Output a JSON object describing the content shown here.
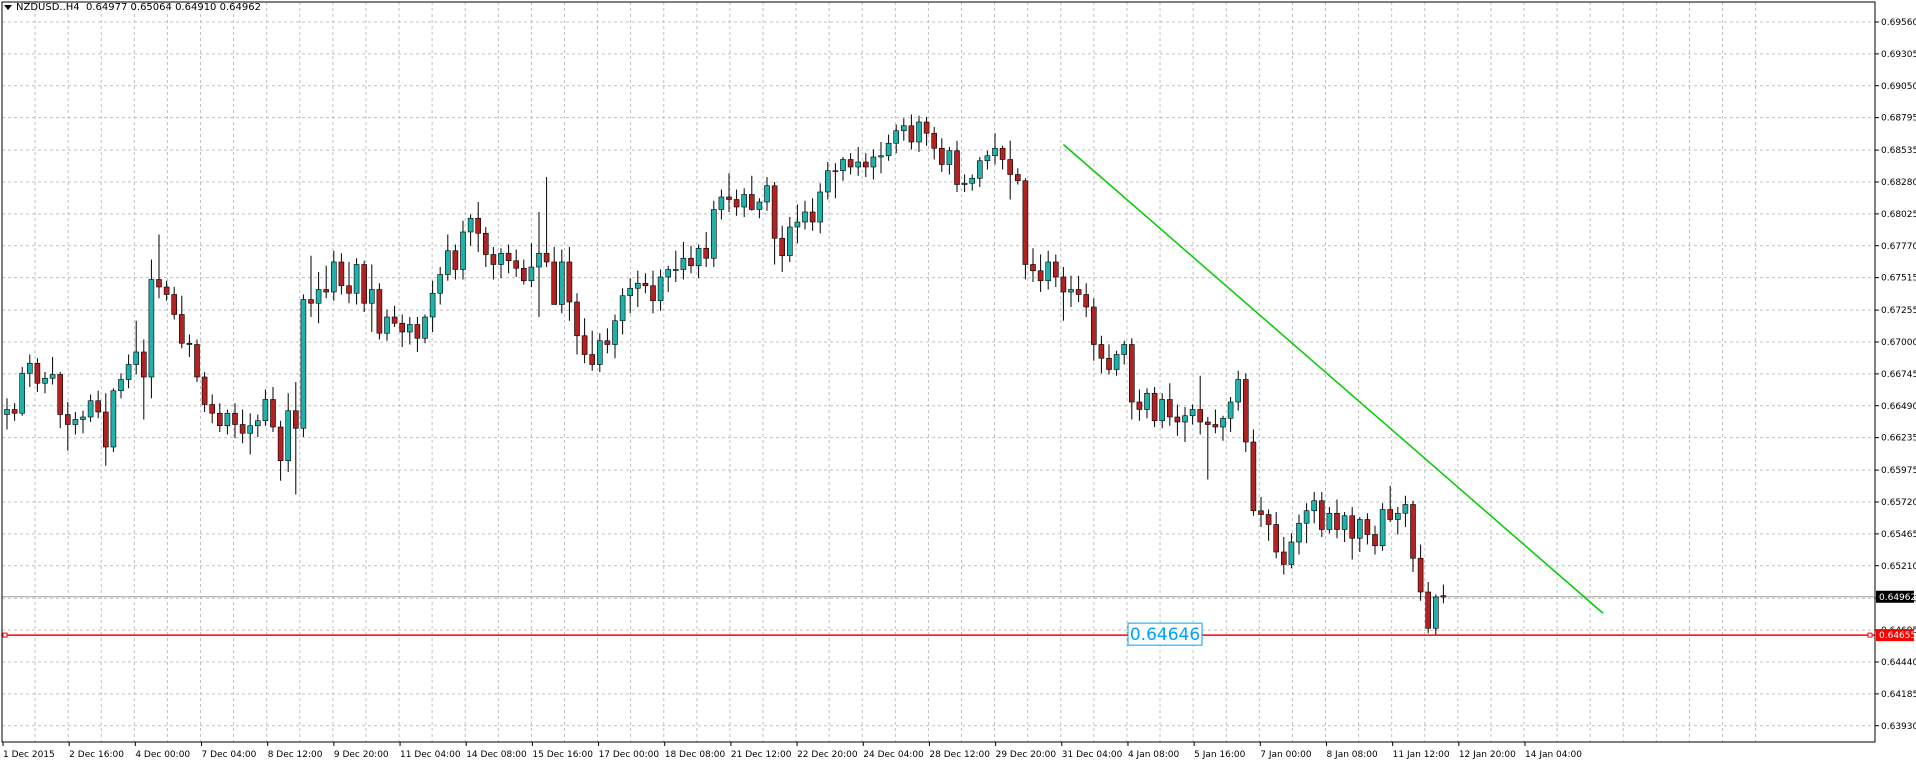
{
  "header": {
    "symbol": "NZDUSD..H4",
    "ohlc_text": "0.64977 0.65064 0.64910 0.64962"
  },
  "colors": {
    "background": "#ffffff",
    "grid": "#c0c0c0",
    "axis": "#000000",
    "bull_candle": "#20b2aa",
    "bear_candle": "#b22222",
    "wick": "#000000",
    "trendline": "#00cc00",
    "support_line": "#ff0000",
    "price_label_bg": "#000000",
    "support_label_bg": "#ff0000",
    "annotation": "#00a0ff"
  },
  "chart_data": {
    "type": "candlestick",
    "symbol": "NZDUSD",
    "timeframe": "H4",
    "grid": true,
    "ylim": [
      0.638,
      0.6972
    ],
    "y_ticks": [
      "0.69560",
      "0.69305",
      "0.69050",
      "0.68795",
      "0.68535",
      "0.68280",
      "0.68025",
      "0.67770",
      "0.67515",
      "0.67255",
      "0.67000",
      "0.66745",
      "0.66490",
      "0.66235",
      "0.65975",
      "0.65720",
      "0.65465",
      "0.65210",
      "0.64950",
      "0.64695",
      "0.64440",
      "0.64185",
      "0.63930"
    ],
    "x_ticks": [
      "1 Dec 2015",
      "2 Dec 16:00",
      "4 Dec 00:00",
      "7 Dec 04:00",
      "8 Dec 12:00",
      "9 Dec 20:00",
      "11 Dec 04:00",
      "14 Dec 08:00",
      "15 Dec 16:00",
      "17 Dec 00:00",
      "18 Dec 08:00",
      "21 Dec 12:00",
      "22 Dec 20:00",
      "24 Dec 04:00",
      "28 Dec 12:00",
      "29 Dec 20:00",
      "31 Dec 04:00",
      "4 Jan 08:00",
      "5 Jan 16:00",
      "7 Jan 00:00",
      "8 Jan 08:00",
      "11 Jan 12:00",
      "12 Jan 20:00",
      "14 Jan 04:00"
    ],
    "current_price": "0.64962",
    "support_level": "0.64655",
    "annotation_text": "0.64646",
    "trendline": {
      "start_index": 139,
      "start_price": 0.6858,
      "end_index": 210,
      "end_price": 0.6483
    },
    "candles": [
      [
        0.6642,
        0.6655,
        0.663,
        0.6646
      ],
      [
        0.6646,
        0.6651,
        0.6637,
        0.6643
      ],
      [
        0.6643,
        0.668,
        0.6641,
        0.6675
      ],
      [
        0.6675,
        0.669,
        0.6664,
        0.6683
      ],
      [
        0.6683,
        0.6687,
        0.666,
        0.6667
      ],
      [
        0.6667,
        0.6676,
        0.6659,
        0.6671
      ],
      [
        0.6671,
        0.6688,
        0.6666,
        0.6674
      ],
      [
        0.6674,
        0.6676,
        0.6631,
        0.6642
      ],
      [
        0.6642,
        0.6652,
        0.6613,
        0.6634
      ],
      [
        0.6634,
        0.6644,
        0.6626,
        0.6638
      ],
      [
        0.6638,
        0.6645,
        0.6627,
        0.664
      ],
      [
        0.664,
        0.6658,
        0.6636,
        0.6653
      ],
      [
        0.6653,
        0.6661,
        0.6639,
        0.6644
      ],
      [
        0.6644,
        0.6659,
        0.6601,
        0.6616
      ],
      [
        0.6616,
        0.6663,
        0.6612,
        0.6661
      ],
      [
        0.6661,
        0.6675,
        0.6655,
        0.667
      ],
      [
        0.667,
        0.669,
        0.6663,
        0.6682
      ],
      [
        0.6682,
        0.6717,
        0.6674,
        0.6692
      ],
      [
        0.6692,
        0.6702,
        0.6638,
        0.6672
      ],
      [
        0.6672,
        0.6766,
        0.6655,
        0.675
      ],
      [
        0.675,
        0.6786,
        0.6735,
        0.6744
      ],
      [
        0.6744,
        0.6749,
        0.6733,
        0.6738
      ],
      [
        0.6738,
        0.6744,
        0.6718,
        0.6722
      ],
      [
        0.6722,
        0.6737,
        0.6695,
        0.6699
      ],
      [
        0.6699,
        0.6706,
        0.6688,
        0.6698
      ],
      [
        0.6698,
        0.6702,
        0.6668,
        0.6672
      ],
      [
        0.6672,
        0.6676,
        0.6644,
        0.665
      ],
      [
        0.665,
        0.6658,
        0.6635,
        0.6643
      ],
      [
        0.6643,
        0.6651,
        0.6628,
        0.6633
      ],
      [
        0.6633,
        0.6646,
        0.6626,
        0.6643
      ],
      [
        0.6643,
        0.6651,
        0.6623,
        0.6634
      ],
      [
        0.6634,
        0.6646,
        0.6619,
        0.6627
      ],
      [
        0.6627,
        0.6643,
        0.661,
        0.6633
      ],
      [
        0.6633,
        0.6642,
        0.6624,
        0.6637
      ],
      [
        0.6637,
        0.6662,
        0.6633,
        0.6654
      ],
      [
        0.6654,
        0.6664,
        0.6628,
        0.6632
      ],
      [
        0.6632,
        0.6637,
        0.6589,
        0.6605
      ],
      [
        0.6605,
        0.6659,
        0.6596,
        0.6645
      ],
      [
        0.6645,
        0.6668,
        0.6578,
        0.6631
      ],
      [
        0.6631,
        0.6738,
        0.6624,
        0.6734
      ],
      [
        0.6734,
        0.6769,
        0.672,
        0.6731
      ],
      [
        0.6731,
        0.6756,
        0.6715,
        0.6742
      ],
      [
        0.6742,
        0.6761,
        0.6735,
        0.674
      ],
      [
        0.674,
        0.6773,
        0.6733,
        0.6764
      ],
      [
        0.6764,
        0.6771,
        0.6738,
        0.6745
      ],
      [
        0.6745,
        0.6764,
        0.6731,
        0.6739
      ],
      [
        0.6739,
        0.6767,
        0.673,
        0.6762
      ],
      [
        0.6762,
        0.6765,
        0.6724,
        0.6731
      ],
      [
        0.6731,
        0.6762,
        0.6708,
        0.6742
      ],
      [
        0.6742,
        0.6747,
        0.6702,
        0.6707
      ],
      [
        0.6707,
        0.6726,
        0.6701,
        0.672
      ],
      [
        0.672,
        0.6729,
        0.6712,
        0.6715
      ],
      [
        0.6715,
        0.6722,
        0.6696,
        0.6708
      ],
      [
        0.6708,
        0.672,
        0.6698,
        0.6714
      ],
      [
        0.6714,
        0.672,
        0.6692,
        0.6703
      ],
      [
        0.6703,
        0.6722,
        0.6699,
        0.672
      ],
      [
        0.672,
        0.6749,
        0.6708,
        0.6739
      ],
      [
        0.6739,
        0.676,
        0.673,
        0.6754
      ],
      [
        0.6754,
        0.6786,
        0.6749,
        0.6773
      ],
      [
        0.6773,
        0.6778,
        0.675,
        0.6758
      ],
      [
        0.6758,
        0.6797,
        0.675,
        0.6788
      ],
      [
        0.6788,
        0.6802,
        0.6777,
        0.6799
      ],
      [
        0.6799,
        0.6812,
        0.6772,
        0.6787
      ],
      [
        0.6787,
        0.6792,
        0.676,
        0.677
      ],
      [
        0.677,
        0.6776,
        0.675,
        0.6762
      ],
      [
        0.6762,
        0.6775,
        0.6751,
        0.6771
      ],
      [
        0.6771,
        0.6778,
        0.6755,
        0.6765
      ],
      [
        0.6765,
        0.6774,
        0.6752,
        0.6759
      ],
      [
        0.6759,
        0.6766,
        0.6746,
        0.6749
      ],
      [
        0.6749,
        0.6779,
        0.6744,
        0.676
      ],
      [
        0.676,
        0.6804,
        0.672,
        0.6771
      ],
      [
        0.6771,
        0.6832,
        0.676,
        0.6764
      ],
      [
        0.6764,
        0.6776,
        0.673,
        0.673
      ],
      [
        0.673,
        0.6774,
        0.6723,
        0.6764
      ],
      [
        0.6764,
        0.6776,
        0.6717,
        0.6732
      ],
      [
        0.6732,
        0.6739,
        0.669,
        0.6705
      ],
      [
        0.6705,
        0.6719,
        0.6683,
        0.669
      ],
      [
        0.669,
        0.6709,
        0.6677,
        0.6682
      ],
      [
        0.6682,
        0.6707,
        0.6676,
        0.6701
      ],
      [
        0.6701,
        0.6711,
        0.6691,
        0.6698
      ],
      [
        0.6698,
        0.6722,
        0.6687,
        0.6717
      ],
      [
        0.6717,
        0.6743,
        0.6706,
        0.6737
      ],
      [
        0.6737,
        0.6751,
        0.6723,
        0.6743
      ],
      [
        0.6743,
        0.6757,
        0.6728,
        0.6747
      ],
      [
        0.6747,
        0.6755,
        0.6739,
        0.6745
      ],
      [
        0.6745,
        0.6757,
        0.6723,
        0.6733
      ],
      [
        0.6733,
        0.6758,
        0.6725,
        0.6752
      ],
      [
        0.6752,
        0.6761,
        0.674,
        0.6758
      ],
      [
        0.6758,
        0.6773,
        0.6748,
        0.6758
      ],
      [
        0.6758,
        0.678,
        0.675,
        0.6767
      ],
      [
        0.6767,
        0.6777,
        0.6755,
        0.6761
      ],
      [
        0.6761,
        0.6778,
        0.6751,
        0.6775
      ],
      [
        0.6775,
        0.6788,
        0.676,
        0.6767
      ],
      [
        0.6767,
        0.6813,
        0.676,
        0.6806
      ],
      [
        0.6806,
        0.6822,
        0.6798,
        0.6816
      ],
      [
        0.6816,
        0.6835,
        0.6804,
        0.6814
      ],
      [
        0.6814,
        0.6822,
        0.6801,
        0.6808
      ],
      [
        0.6808,
        0.6823,
        0.68,
        0.6818
      ],
      [
        0.6818,
        0.6833,
        0.6805,
        0.6806
      ],
      [
        0.6806,
        0.6815,
        0.6799,
        0.6812
      ],
      [
        0.6812,
        0.6832,
        0.6805,
        0.6825
      ],
      [
        0.6825,
        0.6828,
        0.6762,
        0.6783
      ],
      [
        0.6783,
        0.6793,
        0.6756,
        0.6769
      ],
      [
        0.6769,
        0.68,
        0.6764,
        0.6792
      ],
      [
        0.6792,
        0.681,
        0.6779,
        0.6796
      ],
      [
        0.6796,
        0.6813,
        0.679,
        0.6804
      ],
      [
        0.6804,
        0.6815,
        0.6789,
        0.6796
      ],
      [
        0.6796,
        0.6827,
        0.6787,
        0.682
      ],
      [
        0.682,
        0.6844,
        0.6814,
        0.6837
      ],
      [
        0.6837,
        0.6843,
        0.6815,
        0.6837
      ],
      [
        0.6837,
        0.6848,
        0.6829,
        0.6846
      ],
      [
        0.6846,
        0.6851,
        0.6834,
        0.684
      ],
      [
        0.684,
        0.6856,
        0.6833,
        0.6844
      ],
      [
        0.6844,
        0.6851,
        0.6832,
        0.684
      ],
      [
        0.684,
        0.6854,
        0.683,
        0.6848
      ],
      [
        0.6848,
        0.686,
        0.6835,
        0.6849
      ],
      [
        0.6849,
        0.6866,
        0.6845,
        0.6859
      ],
      [
        0.6859,
        0.6874,
        0.6851,
        0.6869
      ],
      [
        0.6869,
        0.6879,
        0.6861,
        0.6873
      ],
      [
        0.6873,
        0.6882,
        0.6854,
        0.686
      ],
      [
        0.686,
        0.6881,
        0.6852,
        0.6876
      ],
      [
        0.6876,
        0.688,
        0.6857,
        0.6867
      ],
      [
        0.6867,
        0.6872,
        0.6846,
        0.6855
      ],
      [
        0.6855,
        0.6863,
        0.6836,
        0.6842
      ],
      [
        0.6842,
        0.6856,
        0.6834,
        0.6853
      ],
      [
        0.6853,
        0.6861,
        0.682,
        0.6826
      ],
      [
        0.6826,
        0.6834,
        0.682,
        0.6827
      ],
      [
        0.6827,
        0.6834,
        0.6821,
        0.6831
      ],
      [
        0.6831,
        0.6848,
        0.6824,
        0.6845
      ],
      [
        0.6845,
        0.6853,
        0.6838,
        0.6849
      ],
      [
        0.6849,
        0.6867,
        0.6842,
        0.6855
      ],
      [
        0.6855,
        0.6857,
        0.6838,
        0.6846
      ],
      [
        0.6846,
        0.6861,
        0.6814,
        0.6834
      ],
      [
        0.6834,
        0.6839,
        0.6826,
        0.6829
      ],
      [
        0.6829,
        0.6831,
        0.675,
        0.6762
      ],
      [
        0.6762,
        0.6775,
        0.6748,
        0.6757
      ],
      [
        0.6757,
        0.677,
        0.674,
        0.6749
      ],
      [
        0.6749,
        0.6773,
        0.6742,
        0.6764
      ],
      [
        0.6764,
        0.677,
        0.6744,
        0.6752
      ],
      [
        0.6752,
        0.676,
        0.6717,
        0.674
      ],
      [
        0.674,
        0.6753,
        0.6728,
        0.6742
      ],
      [
        0.6742,
        0.6753,
        0.6732,
        0.6738
      ],
      [
        0.6738,
        0.6747,
        0.672,
        0.6728
      ],
      [
        0.6728,
        0.6735,
        0.6685,
        0.6698
      ],
      [
        0.6698,
        0.6705,
        0.6675,
        0.6687
      ],
      [
        0.6687,
        0.6698,
        0.6674,
        0.6678
      ],
      [
        0.6678,
        0.6693,
        0.6673,
        0.669
      ],
      [
        0.669,
        0.6701,
        0.6682,
        0.6698
      ],
      [
        0.6698,
        0.6703,
        0.6638,
        0.6652
      ],
      [
        0.6652,
        0.6662,
        0.6637,
        0.6646
      ],
      [
        0.6646,
        0.6663,
        0.6639,
        0.6659
      ],
      [
        0.6659,
        0.6664,
        0.6632,
        0.6637
      ],
      [
        0.6637,
        0.6659,
        0.6631,
        0.6654
      ],
      [
        0.6654,
        0.6667,
        0.6633,
        0.664
      ],
      [
        0.664,
        0.665,
        0.6625,
        0.6636
      ],
      [
        0.6636,
        0.6648,
        0.662,
        0.6641
      ],
      [
        0.6641,
        0.665,
        0.6634,
        0.6646
      ],
      [
        0.6646,
        0.6673,
        0.6626,
        0.6636
      ],
      [
        0.6636,
        0.664,
        0.659,
        0.6634
      ],
      [
        0.6634,
        0.6646,
        0.6627,
        0.6632
      ],
      [
        0.6632,
        0.6641,
        0.6621,
        0.6639
      ],
      [
        0.6639,
        0.6656,
        0.6628,
        0.6652
      ],
      [
        0.6652,
        0.6677,
        0.6645,
        0.667
      ],
      [
        0.667,
        0.6675,
        0.6612,
        0.662
      ],
      [
        0.662,
        0.663,
        0.6561,
        0.6565
      ],
      [
        0.6565,
        0.6576,
        0.6552,
        0.6562
      ],
      [
        0.6562,
        0.6566,
        0.6541,
        0.6554
      ],
      [
        0.6554,
        0.6564,
        0.6527,
        0.6532
      ],
      [
        0.6532,
        0.6544,
        0.6514,
        0.6522
      ],
      [
        0.6522,
        0.6547,
        0.6519,
        0.654
      ],
      [
        0.654,
        0.6562,
        0.653,
        0.6555
      ],
      [
        0.6555,
        0.6571,
        0.6539,
        0.6565
      ],
      [
        0.6565,
        0.658,
        0.6555,
        0.6573
      ],
      [
        0.6573,
        0.658,
        0.6544,
        0.655
      ],
      [
        0.655,
        0.6568,
        0.6547,
        0.6563
      ],
      [
        0.6563,
        0.6574,
        0.6543,
        0.655
      ],
      [
        0.655,
        0.6564,
        0.654,
        0.6561
      ],
      [
        0.6561,
        0.6568,
        0.6526,
        0.6543
      ],
      [
        0.6543,
        0.656,
        0.6532,
        0.6558
      ],
      [
        0.6558,
        0.6563,
        0.6538,
        0.6546
      ],
      [
        0.6546,
        0.6553,
        0.653,
        0.6537
      ],
      [
        0.6537,
        0.6571,
        0.6533,
        0.6566
      ],
      [
        0.6566,
        0.6585,
        0.6556,
        0.6558
      ],
      [
        0.6558,
        0.6568,
        0.6546,
        0.6563
      ],
      [
        0.6563,
        0.6577,
        0.6552,
        0.657
      ],
      [
        0.657,
        0.6573,
        0.6516,
        0.6527
      ],
      [
        0.6527,
        0.6538,
        0.6493,
        0.65
      ],
      [
        0.65,
        0.6508,
        0.6467,
        0.6471
      ],
      [
        0.6471,
        0.6498,
        0.6466,
        0.6496
      ],
      [
        0.6497,
        0.6506,
        0.6491,
        0.6496
      ]
    ]
  }
}
